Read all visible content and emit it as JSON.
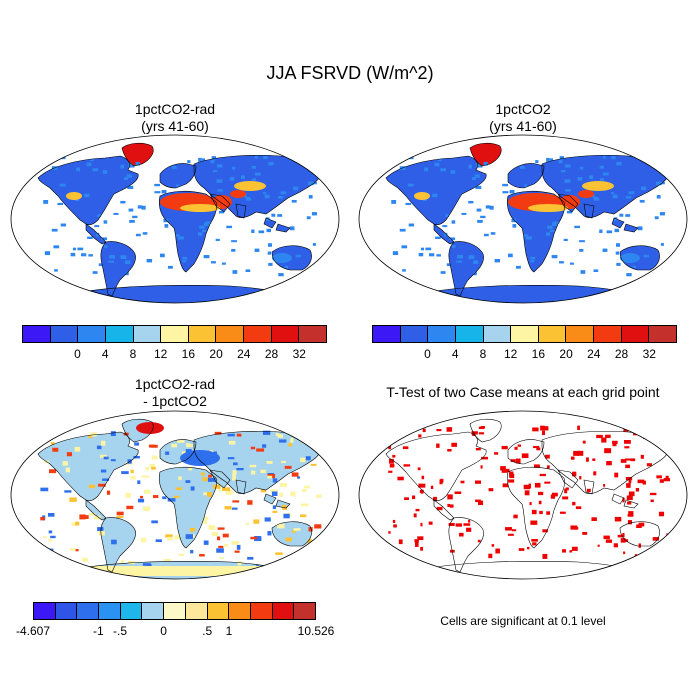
{
  "figure": {
    "title": "JJA FSRVD (W/m^2)"
  },
  "panels": [
    {
      "id": "p1",
      "title_line1": "1pctCO2-rad",
      "title_line2": "(yrs 41-60)"
    },
    {
      "id": "p2",
      "title_line1": "1pctCO2",
      "title_line2": "(yrs 41-60)"
    },
    {
      "id": "p3",
      "title_line1": "1pctCO2-rad",
      "title_line2": "- 1pctCO2"
    },
    {
      "id": "p4",
      "title_line1": "T-Test of two Case means at each grid point",
      "title_line2": ""
    }
  ],
  "colorbar_abs": {
    "colors": [
      "#3b18f5",
      "#2f5fe6",
      "#2e86f0",
      "#17b4ea",
      "#a6d3ee",
      "#fdf4a4",
      "#fbc233",
      "#f98c16",
      "#f23b10",
      "#e00f10",
      "#c4302b"
    ],
    "tick_labels": [
      "0",
      "4",
      "8",
      "12",
      "16",
      "20",
      "24",
      "28",
      "32"
    ]
  },
  "colorbar_diff": {
    "colors": [
      "#3b18f5",
      "#2f55e8",
      "#2e6fee",
      "#2a92f2",
      "#1fb6ec",
      "#a6d3ee",
      "#fdf8c8",
      "#fce79a",
      "#fbc233",
      "#f98c16",
      "#f23b10",
      "#e00f10",
      "#c4302b"
    ],
    "tick_labels": [
      "-4.607",
      "-1",
      "-.5",
      "0",
      ".5",
      "1",
      "10.526"
    ]
  },
  "significance_note": "Cells are significant at 0.1 level",
  "field_colors": {
    "ocean": "#ffffff",
    "land_base": "#2f5fe6",
    "land_light": "#2e86f0",
    "desert_hot": "#f23b10",
    "desert_warm": "#fbc233",
    "greenland": "#e00f10",
    "diff_land": "#a6d3ee",
    "diff_pos": "#fdf4a4",
    "diff_neg": "#2e6fee",
    "sig": "#ee0000"
  }
}
